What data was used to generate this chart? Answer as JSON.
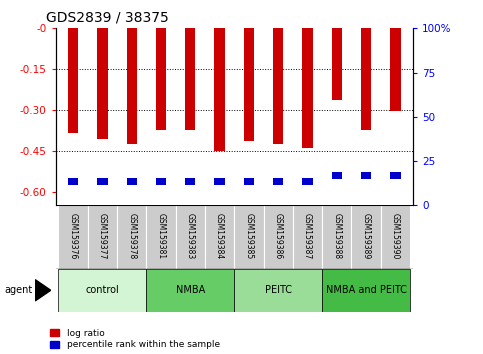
{
  "title": "GDS2839 / 38375",
  "samples": [
    "GSM159376",
    "GSM159377",
    "GSM159378",
    "GSM159381",
    "GSM159383",
    "GSM159384",
    "GSM159385",
    "GSM159386",
    "GSM159387",
    "GSM159388",
    "GSM159389",
    "GSM159390"
  ],
  "log_ratio": [
    -0.385,
    -0.405,
    -0.425,
    -0.375,
    -0.375,
    -0.45,
    -0.415,
    -0.425,
    -0.44,
    -0.265,
    -0.375,
    -0.305
  ],
  "pct_rank_bottom": [
    -0.575,
    -0.575,
    -0.575,
    -0.575,
    -0.575,
    -0.575,
    -0.575,
    -0.575,
    -0.575,
    -0.555,
    -0.555,
    -0.555
  ],
  "pct_rank_top": [
    -0.548,
    -0.548,
    -0.548,
    -0.548,
    -0.548,
    -0.548,
    -0.548,
    -0.548,
    -0.548,
    -0.528,
    -0.528,
    -0.528
  ],
  "ylim_left": [
    -0.65,
    0.0
  ],
  "ylim_right": [
    0,
    100
  ],
  "yticks_left": [
    0.0,
    -0.15,
    -0.3,
    -0.45,
    -0.6
  ],
  "ytick_labels_left": [
    "-0",
    "-0.15",
    "-0.30",
    "-0.45",
    "-0.60"
  ],
  "yticks_right": [
    0,
    25,
    50,
    75,
    100
  ],
  "ytick_labels_right": [
    "0",
    "25",
    "50",
    "75",
    "100%"
  ],
  "groups": [
    {
      "label": "control",
      "start": 0,
      "end": 3,
      "color": "#d4f5d4"
    },
    {
      "label": "NMBA",
      "start": 3,
      "end": 6,
      "color": "#66cc66"
    },
    {
      "label": "PEITC",
      "start": 6,
      "end": 9,
      "color": "#99dd99"
    },
    {
      "label": "NMBA and PEITC",
      "start": 9,
      "end": 12,
      "color": "#44bb44"
    }
  ],
  "bar_color": "#cc0000",
  "pct_color": "#0000cc",
  "background_color": "#ffffff",
  "bar_width": 0.35,
  "legend_red": "log ratio",
  "legend_blue": "percentile rank within the sample",
  "grid_vals": [
    -0.15,
    -0.3,
    -0.45
  ]
}
